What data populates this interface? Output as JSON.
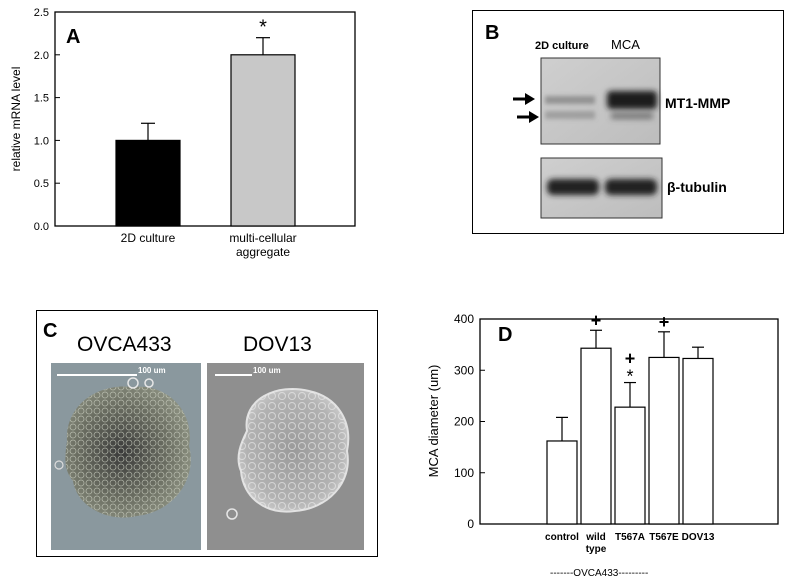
{
  "panels": {
    "A": {
      "letter": "A"
    },
    "B": {
      "letter": "B",
      "lane_labels": [
        "2D culture",
        "MCA"
      ],
      "bands": [
        "MT1-MMP",
        "β-tubulin"
      ]
    },
    "C": {
      "letter": "C",
      "images": [
        {
          "title": "OVCA433",
          "scale_label": "100 um"
        },
        {
          "title": "DOV13",
          "scale_label": "100 um"
        }
      ]
    },
    "D": {
      "letter": "D",
      "group_label": "-------OVCA433---------"
    }
  },
  "chart_data": [
    {
      "type": "bar",
      "panel": "A",
      "categories": [
        "2D culture",
        "multi-cellular aggregate"
      ],
      "category_lines": [
        [
          "2D culture"
        ],
        [
          "multi-cellular",
          "aggregate"
        ]
      ],
      "values": [
        1.0,
        2.0
      ],
      "errors": [
        0.2,
        0.2
      ],
      "annotations": [
        "",
        "*"
      ],
      "bar_colors": [
        "#000000",
        "#c8c8c8"
      ],
      "ylabel": "relative mRNA level",
      "ylim": [
        0,
        2.5
      ],
      "yticks": [
        "0.0",
        "0.5",
        "1.0",
        "1.5",
        "2.0",
        "2.5"
      ],
      "grid": false
    },
    {
      "type": "bar",
      "panel": "D",
      "categories": [
        "control",
        "wild type",
        "T567A",
        "T567E",
        "DOV13"
      ],
      "category_lines": [
        [
          "control"
        ],
        [
          "wild",
          "type"
        ],
        [
          "T567A"
        ],
        [
          "T567E"
        ],
        [
          "DOV13"
        ]
      ],
      "values": [
        162,
        343,
        228,
        325,
        323
      ],
      "errors": [
        46,
        35,
        48,
        50,
        22
      ],
      "annotations": [
        [],
        [
          "+"
        ],
        [
          "+",
          "*"
        ],
        [
          "+"
        ],
        []
      ],
      "bar_colors": [
        "#ffffff",
        "#ffffff",
        "#ffffff",
        "#ffffff",
        "#ffffff"
      ],
      "ylabel": "MCA diameter (um)",
      "ylim": [
        0,
        400
      ],
      "yticks": [
        "0",
        "100",
        "200",
        "300",
        "400"
      ],
      "grid": false
    }
  ]
}
